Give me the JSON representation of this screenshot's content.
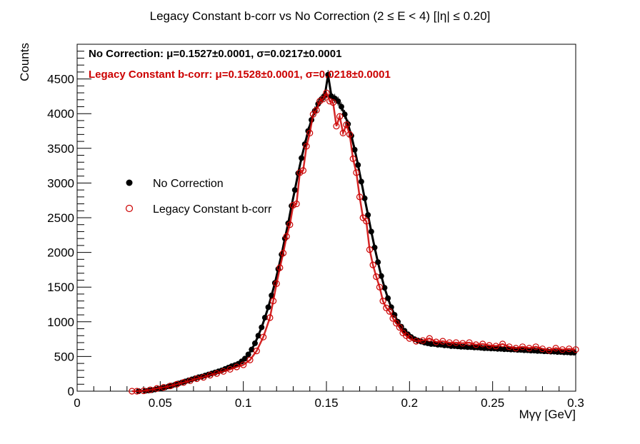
{
  "chart_data": {
    "type": "scatter",
    "title": "Legacy Constant b-corr vs No Correction   (2 ≤ E < 4)   [|η| ≤ 0.20]",
    "xlabel": "Mγγ [GeV]",
    "ylabel": "Counts",
    "xlim": [
      0,
      0.3
    ],
    "ylim": [
      0,
      5000
    ],
    "x_ticks": [
      "0",
      "0.05",
      "0.1",
      "0.15",
      "0.2",
      "0.25",
      "0.3"
    ],
    "y_ticks": [
      "0",
      "500",
      "1000",
      "1500",
      "2000",
      "2500",
      "3000",
      "3500",
      "4000",
      "4500"
    ],
    "grid": false,
    "legend_position": "left",
    "fit_labels": [
      "No Correction: μ=0.1527±0.0001, σ=0.0217±0.0001",
      "Legacy Constant b-corr: μ=0.1528±0.0001, σ=0.0218±0.0001"
    ],
    "series": [
      {
        "name": "No Correction",
        "marker": "filled-circle",
        "color": "#000000",
        "x": [
          0.037,
          0.041,
          0.043,
          0.045,
          0.047,
          0.049,
          0.051,
          0.053,
          0.055,
          0.057,
          0.059,
          0.061,
          0.063,
          0.065,
          0.067,
          0.069,
          0.071,
          0.073,
          0.075,
          0.077,
          0.079,
          0.081,
          0.083,
          0.085,
          0.087,
          0.089,
          0.091,
          0.093,
          0.095,
          0.097,
          0.099,
          0.101,
          0.103,
          0.105,
          0.107,
          0.109,
          0.111,
          0.113,
          0.115,
          0.117,
          0.119,
          0.121,
          0.123,
          0.125,
          0.127,
          0.129,
          0.131,
          0.133,
          0.135,
          0.137,
          0.139,
          0.141,
          0.143,
          0.145,
          0.147,
          0.149,
          0.151,
          0.153,
          0.155,
          0.157,
          0.159,
          0.161,
          0.163,
          0.165,
          0.167,
          0.169,
          0.171,
          0.173,
          0.175,
          0.177,
          0.179,
          0.181,
          0.183,
          0.185,
          0.187,
          0.189,
          0.191,
          0.193,
          0.195,
          0.197,
          0.199,
          0.201,
          0.203,
          0.205,
          0.207,
          0.209,
          0.211,
          0.213,
          0.215,
          0.217,
          0.219,
          0.221,
          0.223,
          0.225,
          0.227,
          0.229,
          0.231,
          0.233,
          0.235,
          0.237,
          0.239,
          0.241,
          0.243,
          0.245,
          0.247,
          0.249,
          0.251,
          0.253,
          0.255,
          0.257,
          0.259,
          0.261,
          0.263,
          0.265,
          0.267,
          0.269,
          0.271,
          0.273,
          0.275,
          0.277,
          0.279,
          0.281,
          0.283,
          0.285,
          0.287,
          0.289,
          0.291,
          0.293,
          0.295,
          0.297,
          0.299
        ],
        "y": [
          0,
          5,
          10,
          15,
          25,
          35,
          45,
          55,
          70,
          80,
          95,
          110,
          125,
          140,
          155,
          170,
          185,
          200,
          210,
          225,
          240,
          255,
          270,
          285,
          300,
          320,
          340,
          360,
          375,
          395,
          430,
          470,
          530,
          600,
          690,
          800,
          920,
          1060,
          1210,
          1380,
          1560,
          1760,
          1970,
          2200,
          2420,
          2670,
          2900,
          3140,
          3360,
          3560,
          3750,
          3910,
          4040,
          4140,
          4210,
          4260,
          4560,
          4250,
          4220,
          4180,
          4100,
          3990,
          3850,
          3680,
          3480,
          3260,
          3020,
          2780,
          2540,
          2300,
          2070,
          1860,
          1660,
          1490,
          1340,
          1210,
          1100,
          1000,
          930,
          870,
          820,
          780,
          750,
          730,
          715,
          700,
          690,
          680,
          680,
          670,
          670,
          660,
          660,
          650,
          650,
          645,
          640,
          640,
          635,
          635,
          630,
          630,
          625,
          620,
          620,
          615,
          615,
          610,
          610,
          605,
          605,
          600,
          600,
          595,
          595,
          590,
          590,
          585,
          585,
          580,
          580,
          575,
          575,
          570,
          570,
          565,
          565,
          560,
          560,
          555,
          555
        ]
      },
      {
        "name": "Legacy Constant b-corr",
        "marker": "open-circle",
        "color": "#cc0000",
        "x": [
          0.033,
          0.036,
          0.04,
          0.044,
          0.048,
          0.052,
          0.056,
          0.06,
          0.064,
          0.068,
          0.072,
          0.076,
          0.08,
          0.084,
          0.088,
          0.092,
          0.096,
          0.1,
          0.104,
          0.108,
          0.112,
          0.116,
          0.118,
          0.12,
          0.122,
          0.124,
          0.126,
          0.128,
          0.13,
          0.132,
          0.134,
          0.136,
          0.138,
          0.14,
          0.142,
          0.144,
          0.146,
          0.148,
          0.15,
          0.152,
          0.154,
          0.156,
          0.158,
          0.16,
          0.162,
          0.164,
          0.166,
          0.168,
          0.17,
          0.172,
          0.174,
          0.176,
          0.178,
          0.18,
          0.182,
          0.184,
          0.186,
          0.188,
          0.19,
          0.192,
          0.194,
          0.196,
          0.198,
          0.2,
          0.204,
          0.208,
          0.212,
          0.216,
          0.22,
          0.224,
          0.228,
          0.232,
          0.236,
          0.24,
          0.244,
          0.248,
          0.252,
          0.256,
          0.26,
          0.264,
          0.268,
          0.272,
          0.276,
          0.28,
          0.284,
          0.288,
          0.292,
          0.296,
          0.3
        ],
        "y": [
          0,
          0,
          5,
          20,
          40,
          55,
          75,
          100,
          125,
          150,
          180,
          200,
          230,
          255,
          285,
          315,
          350,
          380,
          450,
          580,
          780,
          1060,
          1300,
          1550,
          1780,
          1990,
          2230,
          2400,
          2680,
          2700,
          3150,
          3180,
          3530,
          3720,
          3990,
          4050,
          4180,
          4210,
          4300,
          4180,
          4160,
          3820,
          3960,
          3720,
          3840,
          3700,
          3350,
          3150,
          2800,
          2500,
          2450,
          2040,
          1820,
          1650,
          1500,
          1300,
          1200,
          1150,
          1050,
          980,
          920,
          840,
          800,
          760,
          720,
          730,
          760,
          710,
          720,
          700,
          700,
          690,
          700,
          670,
          680,
          660,
          650,
          680,
          640,
          620,
          640,
          620,
          640,
          610,
          590,
          620,
          600,
          610,
          600
        ]
      }
    ]
  }
}
